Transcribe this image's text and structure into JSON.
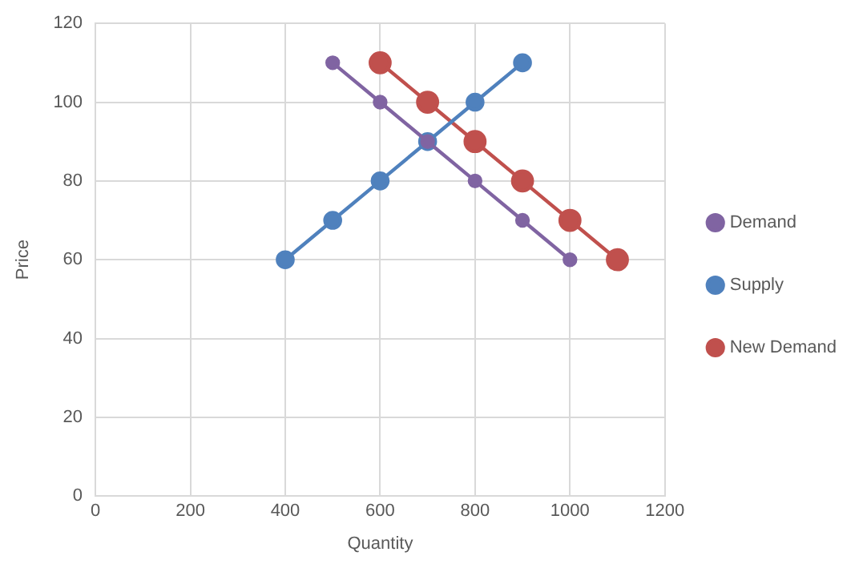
{
  "chart_data": {
    "type": "line",
    "xlabel": "Quantity",
    "ylabel": "Price",
    "xlim": [
      0,
      1200
    ],
    "xticks": [
      0,
      200,
      400,
      600,
      800,
      1000,
      1200
    ],
    "ylim": [
      0,
      120
    ],
    "yticks": [
      0,
      20,
      40,
      60,
      80,
      100,
      120
    ],
    "grid": true,
    "legend": "right",
    "marker": "circle",
    "line_style": "solid",
    "series": [
      {
        "name": "Demand",
        "color": "#8064a2",
        "x": [
          500,
          600,
          700,
          800,
          900,
          1000
        ],
        "values": [
          110,
          100,
          90,
          80,
          70,
          60
        ]
      },
      {
        "name": "Supply",
        "color": "#4f81bd",
        "x": [
          400,
          500,
          600,
          700,
          800,
          900
        ],
        "values": [
          60,
          70,
          80,
          90,
          100,
          110
        ]
      },
      {
        "name": "New Demand",
        "color": "#c0504d",
        "x": [
          600,
          700,
          800,
          900,
          1000,
          1100
        ],
        "values": [
          110,
          100,
          90,
          80,
          70,
          60
        ]
      }
    ]
  }
}
